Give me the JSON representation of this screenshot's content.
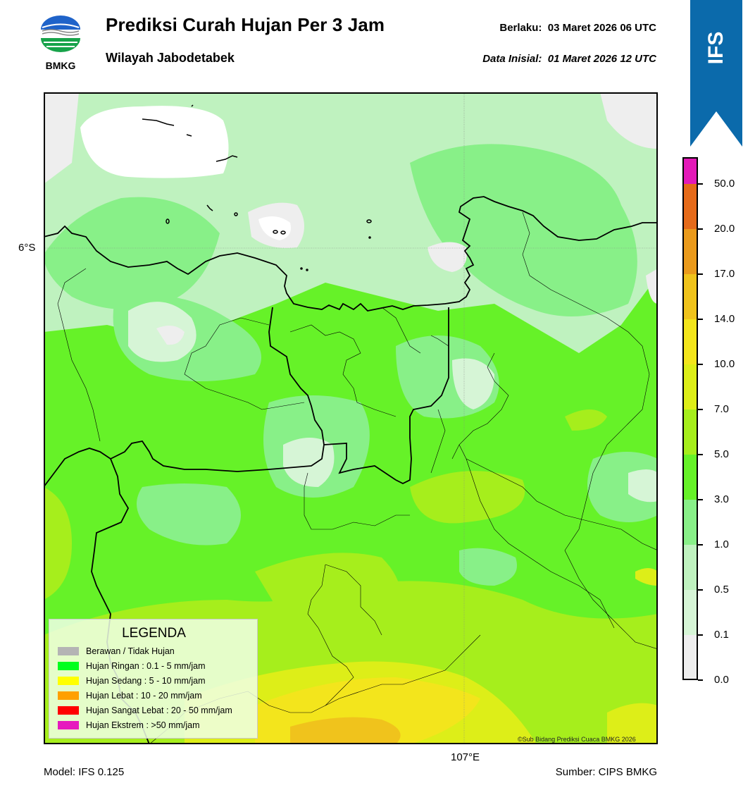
{
  "header": {
    "logo_text": "BMKG",
    "title": "Prediksi Curah Hujan Per 3 Jam",
    "subtitle": "Wilayah Jabodetabek",
    "valid_label": "Berlaku:",
    "valid_value": "03 Maret 2026 06 UTC",
    "init_label": "Data Inisial:",
    "init_value": "01 Maret 2026 12 UTC"
  },
  "badge": {
    "text": "IFS",
    "color": "#0b6aab"
  },
  "map": {
    "lat_label": "6°S",
    "lon_label": "107°E",
    "credit": "©Sub Bidang Prediksi Cuaca BMKG 2026"
  },
  "legend": {
    "title": "LEGENDA",
    "items": [
      {
        "label": "Berawan / Tidak Hujan",
        "color": "#b4b4b4"
      },
      {
        "label": "Hujan Ringan : 0.1 - 5 mm/jam",
        "color": "#00ff1e"
      },
      {
        "label": "Hujan Sedang : 5 - 10 mm/jam",
        "color": "#ffff00"
      },
      {
        "label": "Hujan Lebat : 10 - 20 mm/jam",
        "color": "#ffa000"
      },
      {
        "label": "Hujan Sangat Lebat : 20 - 50 mm/jam",
        "color": "#ff0000"
      },
      {
        "label": "Hujan Ekstrem : >50 mm/jam",
        "color": "#e619be"
      }
    ]
  },
  "colorbar": {
    "labels": [
      "0.0",
      "0.1",
      "0.5",
      "1.0",
      "3.0",
      "5.0",
      "7.0",
      "10.0",
      "14.0",
      "17.0",
      "20.0",
      "50.0"
    ],
    "colors": [
      "#eeeeee",
      "#d6f5d6",
      "#bff2bf",
      "#88f088",
      "#66f228",
      "#a6ee1c",
      "#ddee18",
      "#f3e51c",
      "#f0c31c",
      "#ea9a1c",
      "#e56a1a",
      "#e32a1a",
      "#e31ab8"
    ]
  },
  "footer": {
    "model": "Model: IFS 0.125",
    "source": "Sumber: CIPS BMKG"
  }
}
